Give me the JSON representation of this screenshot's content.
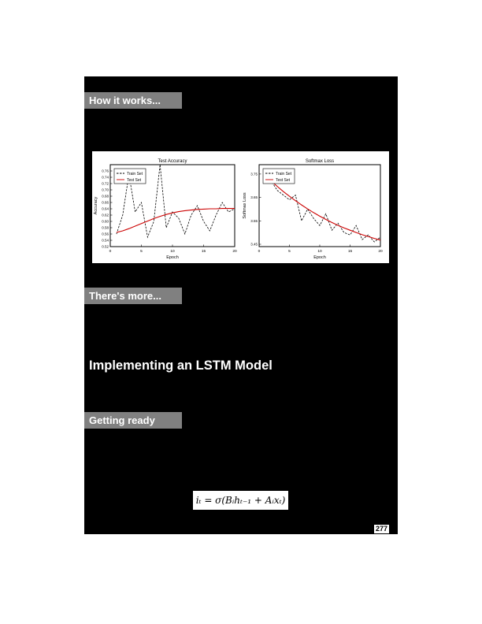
{
  "sections": {
    "how_it_works": "How it works...",
    "theres_more": "There's more...",
    "getting_ready": "Getting ready"
  },
  "chapter_heading": "Implementing an LSTM Model",
  "formula": "iₜ = σ(Bᵢhₜ₋₁ + Aᵢxₜ)",
  "page_number": "277",
  "chart_data": [
    {
      "type": "line",
      "title": "Test Accuracy",
      "xlabel": "Epoch",
      "ylabel": "Accuracy",
      "xlim": [
        0,
        20
      ],
      "ylim": [
        0.52,
        0.78
      ],
      "xticks": [
        "0",
        "5",
        "10",
        "15",
        "20"
      ],
      "yticks": [
        "0.52",
        "0.54",
        "0.56",
        "0.58",
        "0.60",
        "0.62",
        "0.64",
        "0.66",
        "0.68",
        "0.70",
        "0.72",
        "0.74",
        "0.76"
      ],
      "legend_position": "top-left",
      "series": [
        {
          "name": "Train Set",
          "style": "dashed",
          "color": "#000000",
          "x": [
            1,
            2,
            3,
            4,
            5,
            6,
            7,
            8,
            9,
            10,
            11,
            12,
            13,
            14,
            15,
            16,
            17,
            18,
            19,
            20
          ],
          "y": [
            0.56,
            0.62,
            0.75,
            0.63,
            0.66,
            0.55,
            0.6,
            0.78,
            0.58,
            0.63,
            0.61,
            0.56,
            0.62,
            0.65,
            0.6,
            0.57,
            0.62,
            0.66,
            0.63,
            0.64
          ]
        },
        {
          "name": "Test Set",
          "style": "solid",
          "color": "#cc0000",
          "x": [
            1,
            2,
            3,
            4,
            5,
            6,
            7,
            8,
            9,
            10,
            11,
            12,
            13,
            14,
            15,
            16,
            17,
            18,
            19,
            20
          ],
          "y": [
            0.565,
            0.57,
            0.577,
            0.585,
            0.593,
            0.601,
            0.609,
            0.616,
            0.622,
            0.627,
            0.631,
            0.634,
            0.636,
            0.638,
            0.639,
            0.64,
            0.64,
            0.641,
            0.641,
            0.641
          ]
        }
      ]
    },
    {
      "type": "line",
      "title": "Softmax Loss",
      "xlabel": "Epoch",
      "ylabel": "Softmax Loss",
      "xlim": [
        0,
        20
      ],
      "ylim": [
        3.44,
        3.79
      ],
      "xticks": [
        "0",
        "5",
        "10",
        "15",
        "20"
      ],
      "yticks": [
        "3.45",
        "3.55",
        "3.65",
        "3.75"
      ],
      "legend_position": "top-left",
      "series": [
        {
          "name": "Train Set",
          "style": "dashed",
          "color": "#000000",
          "x": [
            1,
            2,
            3,
            4,
            5,
            6,
            7,
            8,
            9,
            10,
            11,
            12,
            13,
            14,
            15,
            16,
            17,
            18,
            19,
            20
          ],
          "y": [
            3.76,
            3.72,
            3.68,
            3.66,
            3.64,
            3.66,
            3.55,
            3.6,
            3.56,
            3.53,
            3.58,
            3.51,
            3.54,
            3.5,
            3.49,
            3.53,
            3.47,
            3.49,
            3.46,
            3.48
          ]
        },
        {
          "name": "Test Set",
          "style": "solid",
          "color": "#cc0000",
          "x": [
            1,
            2,
            3,
            4,
            5,
            6,
            7,
            8,
            9,
            10,
            11,
            12,
            13,
            14,
            15,
            16,
            17,
            18,
            19,
            20
          ],
          "y": [
            3.745,
            3.72,
            3.697,
            3.675,
            3.655,
            3.636,
            3.618,
            3.601,
            3.585,
            3.57,
            3.556,
            3.543,
            3.531,
            3.52,
            3.51,
            3.5,
            3.491,
            3.483,
            3.475,
            3.468
          ]
        }
      ]
    }
  ]
}
